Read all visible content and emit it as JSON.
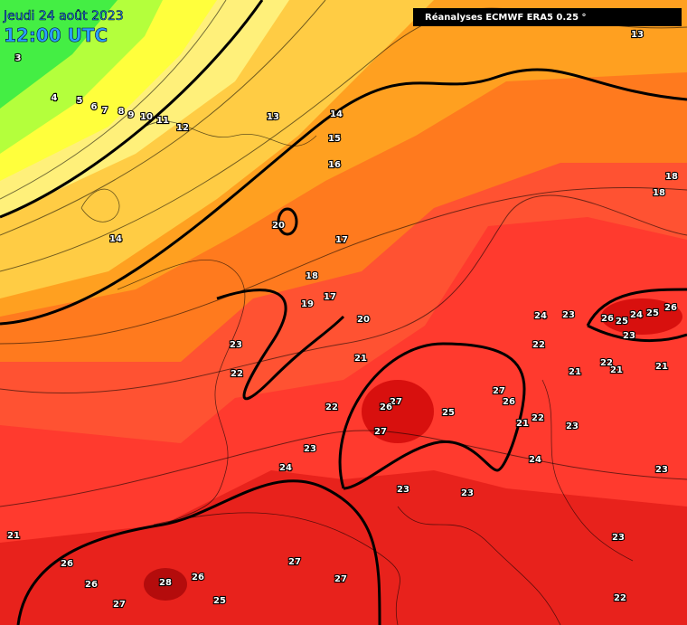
{
  "header": {
    "date": "Jeudi 24 août 2023",
    "time": "12:00 UTC",
    "source": "Réanalyses ECMWF ERA5 0.25 °"
  },
  "contour_labels": [
    "3",
    "4",
    "5",
    "6",
    "7",
    "8",
    "9",
    "10",
    "11",
    "12",
    "13",
    "14",
    "15",
    "16",
    "13",
    "18",
    "18",
    "14",
    "20",
    "17",
    "18",
    "17",
    "19",
    "20",
    "23",
    "22",
    "21",
    "24",
    "23",
    "26",
    "25",
    "24",
    "25",
    "26",
    "23",
    "22",
    "22",
    "21",
    "21",
    "21",
    "27",
    "26",
    "27",
    "26",
    "25",
    "22",
    "27",
    "21",
    "22",
    "23",
    "23",
    "24",
    "24",
    "23",
    "23",
    "23",
    "21",
    "23",
    "26",
    "27",
    "26",
    "28",
    "26",
    "27",
    "27",
    "25",
    "22"
  ]
}
